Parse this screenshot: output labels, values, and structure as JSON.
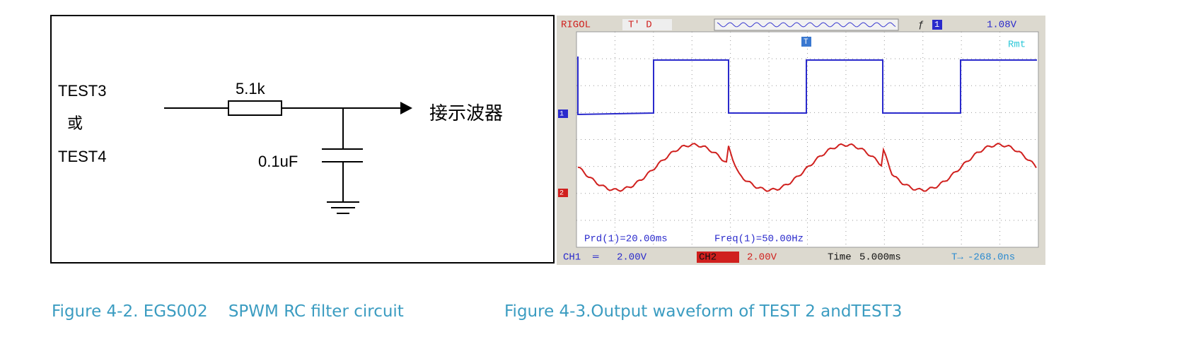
{
  "circuit": {
    "input_top": "TEST3",
    "input_or": "或",
    "input_bottom": "TEST4",
    "resistor": "5.1k",
    "capacitor": "0.1uF",
    "output": "接示波器"
  },
  "scope": {
    "brand": "RIGOL",
    "mode": "T' D",
    "trigger_level": "1.08V",
    "trigger_channel": "1",
    "remote": "Rmt",
    "trigger_marker": "T",
    "ch1_marker": "1",
    "ch2_marker": "2",
    "measurements": [
      "Prd(1)=20.00ms",
      "Freq(1)=50.00Hz"
    ],
    "ch1_label": "CH1",
    "ch1_scale": "2.00V",
    "ch2_label": "CH2",
    "ch2_scale": "2.00V",
    "time_label": "Time",
    "time_scale": "5.000ms",
    "trigger_offset": "-268.0ns"
  },
  "captions": [
    "Figure 4-2. EGS002    SPWM RC filter circuit",
    "Figure 4-3.Output waveform of TEST 2 andTEST3"
  ]
}
